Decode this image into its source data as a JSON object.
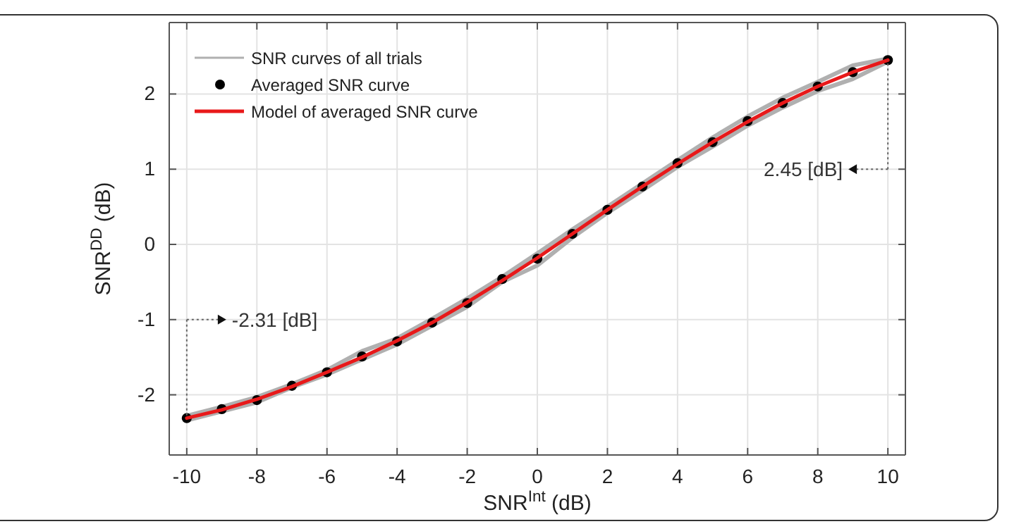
{
  "chart_data": {
    "type": "line",
    "xlabel": "SNR$^{Int}$ (dB)",
    "ylabel": "SNR$^{DD}$ (dB)",
    "x": [
      -10,
      -9,
      -8,
      -7,
      -6,
      -5,
      -4,
      -3,
      -2,
      -1,
      0,
      1,
      2,
      3,
      4,
      5,
      6,
      7,
      8,
      9,
      10
    ],
    "xlim": [
      -10.5,
      10.5
    ],
    "ylim": [
      -2.8,
      2.95
    ],
    "xticks": [
      -10,
      -8,
      -6,
      -4,
      -2,
      0,
      2,
      4,
      6,
      8,
      10
    ],
    "yticks": [
      -2,
      -1,
      0,
      1,
      2
    ],
    "grid": true,
    "legend": "top left",
    "series": [
      {
        "name": "SNR curves of all trials",
        "color": "#b0b0b0",
        "marker": "none",
        "values": [
          -2.28,
          -2.16,
          -2.03,
          -1.86,
          -1.67,
          -1.42,
          -1.25,
          -0.99,
          -0.72,
          -0.43,
          -0.12,
          0.2,
          0.5,
          0.81,
          1.12,
          1.42,
          1.7,
          1.95,
          2.16,
          2.38,
          2.47
        ]
      },
      {
        "color": "#b0b0b0",
        "marker": "none",
        "values": [
          -2.34,
          -2.22,
          -2.1,
          -1.9,
          -1.73,
          -1.53,
          -1.33,
          -1.08,
          -0.83,
          -0.5,
          -0.28,
          0.09,
          0.42,
          0.72,
          1.03,
          1.3,
          1.58,
          1.82,
          2.04,
          2.2,
          2.43
        ]
      },
      {
        "name": "Averaged SNR curve",
        "type": "scatter",
        "color": "#000000",
        "marker": "circle",
        "values": [
          -2.31,
          -2.19,
          -2.07,
          -1.88,
          -1.7,
          -1.49,
          -1.29,
          -1.04,
          -0.78,
          -0.46,
          -0.19,
          0.14,
          0.46,
          0.77,
          1.08,
          1.36,
          1.64,
          1.88,
          2.1,
          2.29,
          2.45
        ]
      },
      {
        "name": "Model of averaged SNR curve",
        "color": "#e8191a",
        "marker": "none",
        "values": [
          -2.31,
          -2.2,
          -2.06,
          -1.89,
          -1.7,
          -1.5,
          -1.28,
          -1.04,
          -0.77,
          -0.48,
          -0.18,
          0.14,
          0.46,
          0.77,
          1.07,
          1.36,
          1.63,
          1.88,
          2.1,
          2.29,
          2.45
        ]
      }
    ],
    "annotations": [
      "-2.31 [dB]",
      "2.45 [dB]"
    ]
  }
}
